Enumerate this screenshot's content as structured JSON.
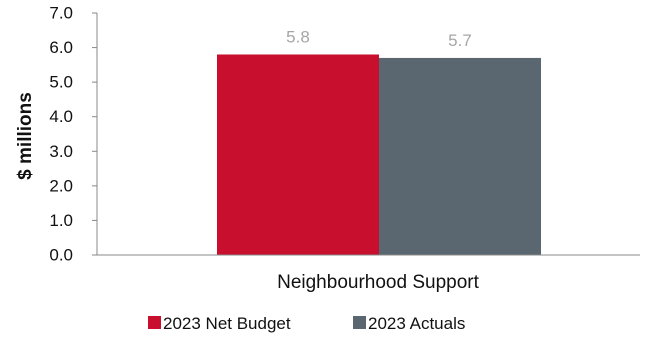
{
  "chart_data": {
    "type": "bar",
    "title": "",
    "xlabel": "",
    "ylabel": "$ millions",
    "ylim": [
      0,
      7
    ],
    "yticks": [
      "0.0",
      "1.0",
      "2.0",
      "3.0",
      "4.0",
      "5.0",
      "6.0",
      "7.0"
    ],
    "categories": [
      "Neighbourhood Support"
    ],
    "series": [
      {
        "name": "2023 Net Budget",
        "values": [
          5.8
        ],
        "labels": [
          "5.8"
        ],
        "color": "#c8102e"
      },
      {
        "name": "2023 Actuals",
        "values": [
          5.7
        ],
        "labels": [
          "5.7"
        ],
        "color": "#5a6770"
      }
    ],
    "legend_position": "bottom",
    "grid": false
  }
}
